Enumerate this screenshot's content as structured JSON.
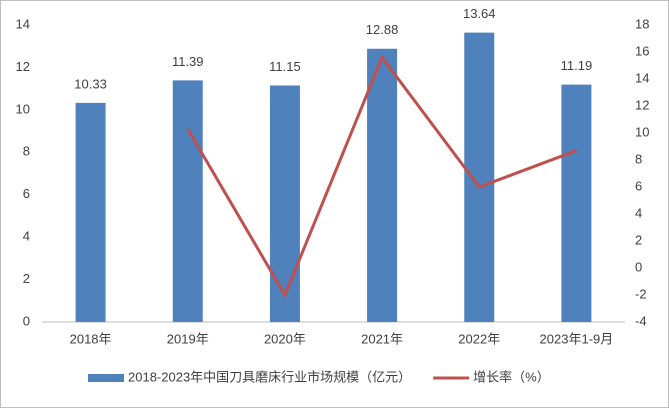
{
  "chart_data": {
    "type": "bar",
    "categories": [
      "2018年",
      "2019年",
      "2020年",
      "2021年",
      "2022年",
      "2023年1-9月"
    ],
    "series": [
      {
        "name": "2018-2023年中国刀具磨床行业市场规模（亿元）",
        "color": "#4f81bd",
        "type": "bar",
        "values": [
          10.33,
          11.39,
          11.15,
          12.88,
          13.64,
          11.19
        ]
      },
      {
        "name": "增长率（%）",
        "color": "#c0504d",
        "type": "line",
        "axis": "y2",
        "values": [
          null,
          10.3,
          -2.0,
          15.6,
          6.0,
          8.7
        ]
      }
    ],
    "ylim": [
      0,
      14
    ],
    "yticks": [
      0,
      2,
      4,
      6,
      8,
      10,
      12,
      14
    ],
    "y2lim": [
      -4,
      18
    ],
    "y2ticks": [
      -4,
      -2,
      0,
      2,
      4,
      6,
      8,
      10,
      12,
      14,
      16,
      18
    ],
    "legend": "bottom"
  }
}
